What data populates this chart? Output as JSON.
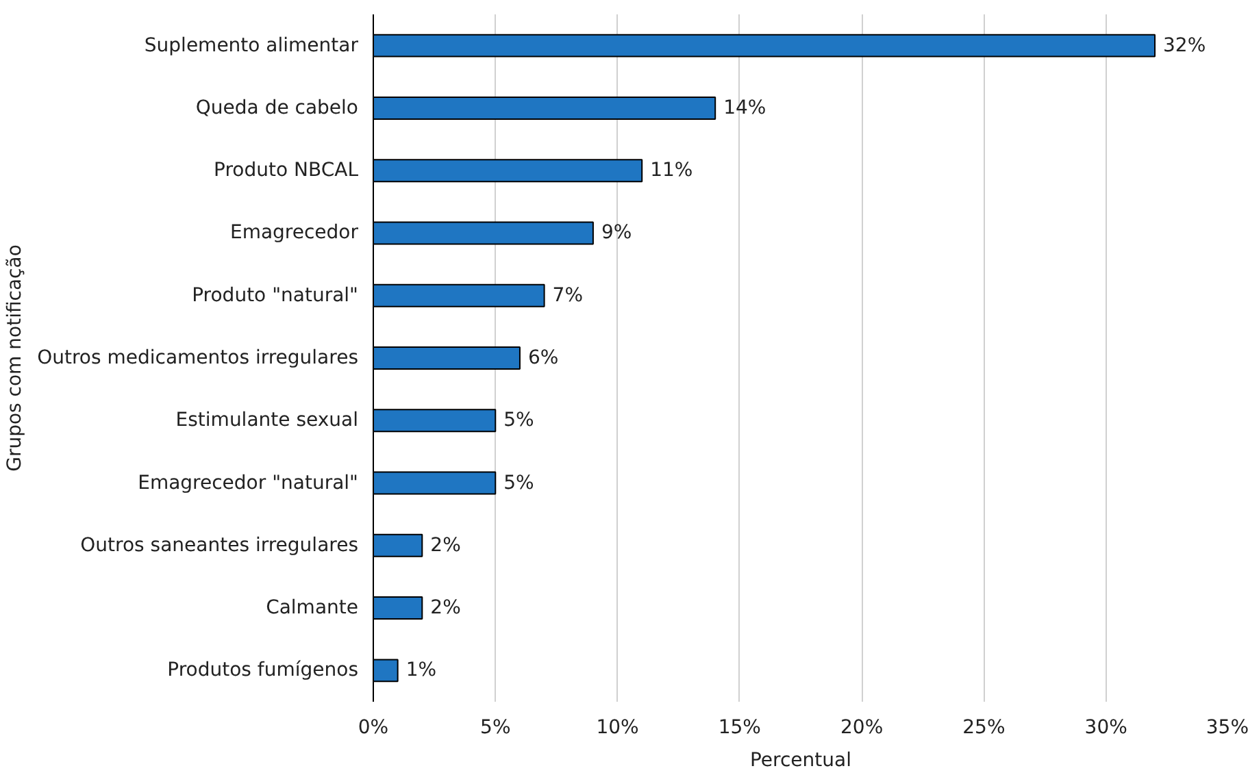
{
  "chart_data": {
    "type": "bar",
    "orientation": "horizontal",
    "xlabel": "Percentual",
    "ylabel": "Grupos com notificação",
    "categories": [
      "Suplemento alimentar",
      "Queda de cabelo",
      "Produto NBCAL",
      "Emagrecedor",
      "Produto \"natural\"",
      "Outros medicamentos irregulares",
      "Estimulante sexual",
      "Emagrecedor \"natural\"",
      "Outros saneantes irregulares",
      "Calmante",
      "Produtos fumígenos"
    ],
    "values": [
      32,
      14,
      11,
      9,
      7,
      6,
      5,
      5,
      2,
      2,
      1
    ],
    "value_labels": [
      "32%",
      "14%",
      "11%",
      "9%",
      "7%",
      "6%",
      "5%",
      "5%",
      "2%",
      "2%",
      "1%"
    ],
    "color": "#1f76c2",
    "xlim": [
      0,
      35
    ],
    "xticks": [
      {
        "value": 0,
        "label": "0%"
      },
      {
        "value": 5,
        "label": "5%"
      },
      {
        "value": 10,
        "label": "10%"
      },
      {
        "value": 15,
        "label": "15%"
      },
      {
        "value": 20,
        "label": "20%"
      },
      {
        "value": 25,
        "label": "25%"
      },
      {
        "value": 30,
        "label": "30%"
      },
      {
        "value": 35,
        "label": "35%"
      }
    ],
    "grid": "x"
  }
}
